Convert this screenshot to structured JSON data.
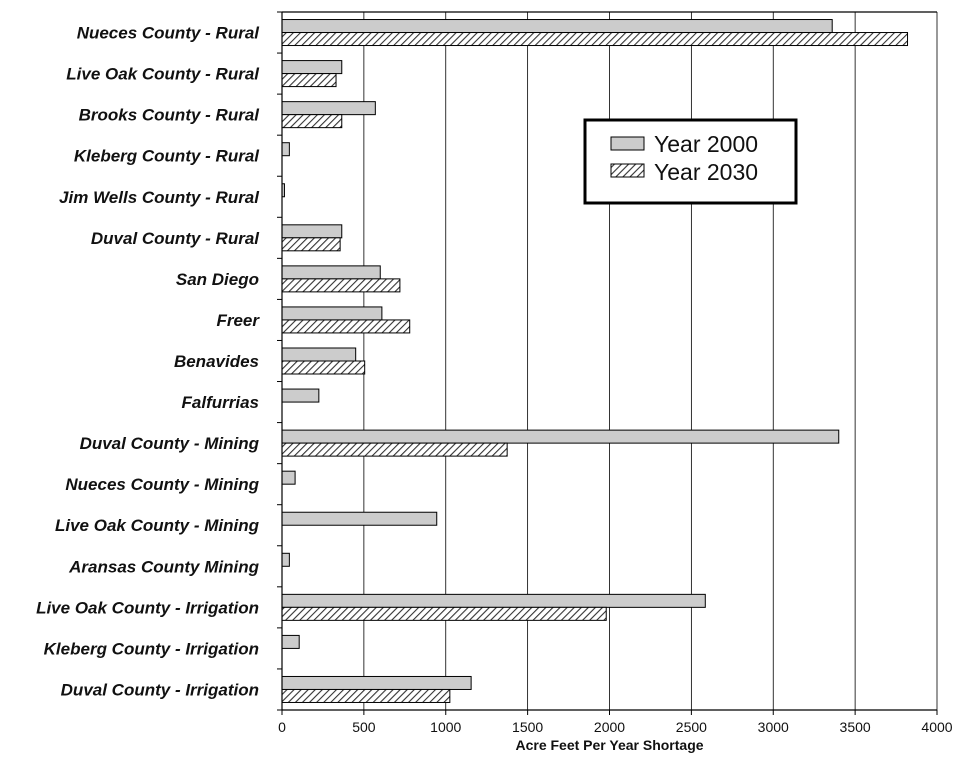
{
  "chart_data": {
    "type": "bar",
    "orientation": "horizontal",
    "title": "",
    "xlabel": "Acre Feet Per Year Shortage",
    "ylabel": "",
    "xlim": [
      0,
      4000
    ],
    "xticks": [
      0,
      500,
      1000,
      1500,
      2000,
      2500,
      3000,
      3500,
      4000
    ],
    "grid": "vertical",
    "legend_position": "upper-right",
    "categories": [
      "Nueces County - Rural",
      "Live Oak County - Rural",
      "Brooks County - Rural",
      "Kleberg County - Rural",
      "Jim Wells County - Rural",
      "Duval County - Rural",
      "San Diego",
      "Freer",
      "Benavides",
      "Falfurrias",
      "Duval County - Mining",
      "Nueces County - Mining",
      "Live Oak County - Mining",
      "Aransas County Mining",
      "Live Oak County - Irrigation",
      "Kleberg County - Irrigation",
      "Duval County - Irrigation"
    ],
    "series": [
      {
        "name": "Year 2000",
        "pattern": "solid",
        "color": "#cccccc",
        "values": [
          3360,
          365,
          570,
          45,
          15,
          365,
          600,
          610,
          450,
          225,
          3400,
          80,
          945,
          45,
          2585,
          105,
          1155
        ]
      },
      {
        "name": "Year 2030",
        "pattern": "hatched",
        "color": "#ffffff",
        "values": [
          3820,
          330,
          365,
          0,
          0,
          355,
          720,
          780,
          505,
          0,
          1375,
          0,
          0,
          0,
          1980,
          0,
          1025
        ]
      }
    ]
  }
}
